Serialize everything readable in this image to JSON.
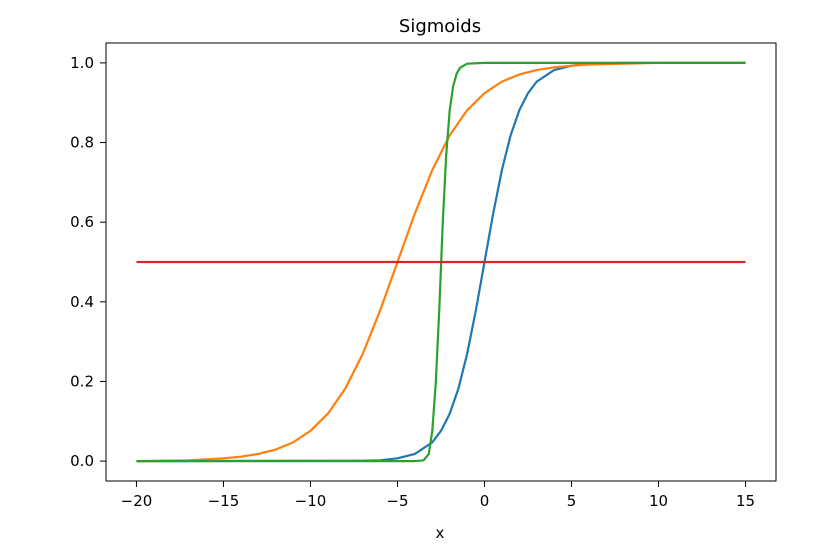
{
  "chart_data": {
    "type": "line",
    "title": "Sigmoids",
    "xlabel": "x",
    "ylabel": "",
    "xlim": [
      -21.75,
      16.75
    ],
    "ylim": [
      -0.05,
      1.05
    ],
    "xticks": [
      -20,
      -15,
      -10,
      -5,
      0,
      5,
      10,
      15
    ],
    "yticks": [
      0.0,
      0.2,
      0.4,
      0.6,
      0.8,
      1.0
    ],
    "xtick_labels": [
      "−20",
      "−15",
      "−10",
      "−5",
      "0",
      "5",
      "10",
      "15"
    ],
    "ytick_labels": [
      "0.0",
      "0.2",
      "0.4",
      "0.6",
      "0.8",
      "1.0"
    ],
    "grid": false,
    "series": [
      {
        "color": "#1f77b4",
        "x": [
          -20,
          -7,
          -6,
          -5,
          -4,
          -3,
          -2.5,
          -2,
          -1.5,
          -1,
          -0.5,
          0,
          0.5,
          1,
          1.5,
          2,
          2.5,
          3,
          4,
          5,
          6,
          8,
          15
        ],
        "y": [
          0.0,
          0.001,
          0.002,
          0.007,
          0.018,
          0.047,
          0.076,
          0.119,
          0.182,
          0.269,
          0.378,
          0.5,
          0.622,
          0.731,
          0.818,
          0.881,
          0.924,
          0.953,
          0.982,
          0.993,
          0.998,
          1.0,
          1.0
        ]
      },
      {
        "color": "#ff7f0e",
        "x": [
          -20,
          -17,
          -15,
          -14,
          -13,
          -12,
          -11,
          -10,
          -9,
          -8,
          -7,
          -6,
          -5,
          -4,
          -3,
          -2,
          -1,
          0,
          1,
          2,
          3,
          4,
          5,
          6,
          8,
          10,
          15
        ],
        "y": [
          0.0,
          0.002,
          0.007,
          0.011,
          0.018,
          0.029,
          0.047,
          0.076,
          0.119,
          0.182,
          0.269,
          0.378,
          0.5,
          0.622,
          0.731,
          0.818,
          0.881,
          0.924,
          0.953,
          0.971,
          0.982,
          0.989,
          0.993,
          0.996,
          0.998,
          1.0,
          1.0
        ]
      },
      {
        "color": "#2ca02c",
        "x": [
          -20,
          -4,
          -3.5,
          -3.2,
          -3.0,
          -2.8,
          -2.6,
          -2.4,
          -2.2,
          -2.0,
          -1.8,
          -1.6,
          -1.4,
          -1.0,
          0,
          15
        ],
        "y": [
          0.0,
          0.0,
          0.002,
          0.018,
          0.076,
          0.197,
          0.38,
          0.598,
          0.769,
          0.881,
          0.942,
          0.973,
          0.988,
          0.998,
          1.0,
          1.0
        ]
      },
      {
        "color": "#d62728",
        "x": [
          -20,
          15
        ],
        "y": [
          0.5,
          0.5
        ]
      }
    ]
  }
}
